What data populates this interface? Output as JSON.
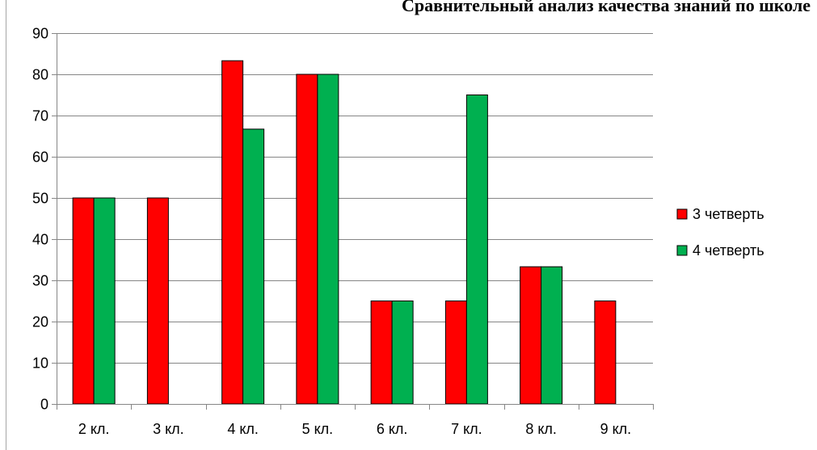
{
  "chart_data": {
    "type": "bar",
    "title": "Сравнительный анализ качества знаний по школе",
    "categories": [
      "2 кл.",
      "3 кл.",
      "4 кл.",
      "5 кл.",
      "6 кл.",
      "7 кл.",
      "8 кл.",
      "9 кл."
    ],
    "series": [
      {
        "name": "3 четверть",
        "color": "#ff0000",
        "values": [
          50,
          50,
          83.3,
          80,
          25,
          25,
          33.3,
          25
        ]
      },
      {
        "name": "4 четверть",
        "color": "#00b050",
        "values": [
          50,
          null,
          66.7,
          80,
          25,
          75,
          33.3,
          null
        ]
      }
    ],
    "ylim": [
      0,
      90
    ],
    "yticks": [
      0,
      10,
      20,
      30,
      40,
      50,
      60,
      70,
      80,
      90
    ],
    "xlabel": "",
    "ylabel": "",
    "grid": true,
    "legend_position": "right"
  }
}
